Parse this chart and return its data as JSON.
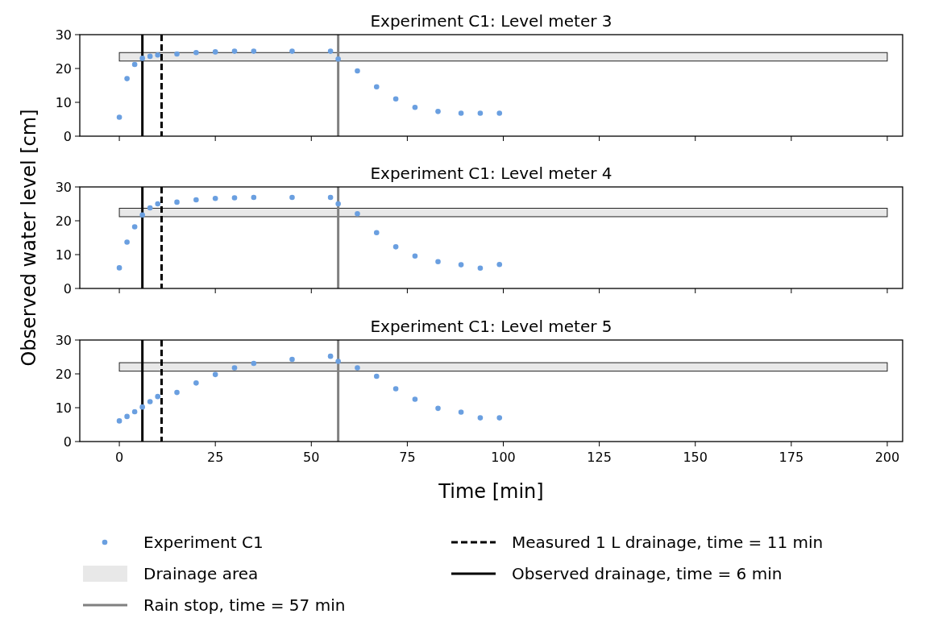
{
  "chart_data": [
    {
      "type": "scatter",
      "title": "Experiment C1: Level meter 3",
      "x": [
        0,
        2,
        4,
        6,
        8,
        10,
        15,
        20,
        25,
        30,
        35,
        45,
        55,
        57,
        62,
        67,
        72,
        77,
        83,
        89,
        94,
        99
      ],
      "series": [
        {
          "color": "#6a9fe0",
          "values": [
            5.6,
            17,
            21.2,
            23,
            23.6,
            24,
            24.3,
            24.7,
            24.9,
            25.1,
            25.1,
            25.1,
            25.1,
            22.8,
            19.3,
            14.6,
            11,
            8.5,
            7.3,
            6.8,
            6.8,
            6.8
          ]
        }
      ],
      "xlim": [
        -10.3,
        204
      ],
      "xticks": [
        0,
        25,
        50,
        75,
        100,
        125,
        150,
        175,
        200
      ],
      "ylim": [
        0,
        30
      ],
      "yticks": [
        0,
        10,
        20,
        30
      ],
      "tick_labels": "y",
      "marker": "circle",
      "grid": false,
      "bands": [
        {
          "axis": "y",
          "from": 22.2,
          "to": 24.7,
          "color": "#e8e8e8"
        }
      ],
      "ref_lines": [
        {
          "axis": "x",
          "value": 57,
          "color": "#808080",
          "line_style": "solid"
        },
        {
          "axis": "x",
          "value": 11,
          "color": "#000000",
          "line_style": "dashed"
        },
        {
          "axis": "x",
          "value": 6,
          "color": "#000000",
          "line_style": "solid"
        }
      ]
    },
    {
      "type": "scatter",
      "title": "Experiment C1: Level meter 4",
      "ylabel": "Observed water level [cm]",
      "x": [
        0,
        2,
        4,
        6,
        8,
        10,
        15,
        20,
        25,
        30,
        35,
        45,
        55,
        57,
        62,
        67,
        72,
        77,
        83,
        89,
        94,
        99
      ],
      "series": [
        {
          "color": "#6a9fe0",
          "values": [
            6.1,
            13.7,
            18.2,
            21.7,
            23.8,
            25,
            25.5,
            26.2,
            26.6,
            26.8,
            26.9,
            26.9,
            26.9,
            25,
            22.1,
            16.5,
            12.3,
            9.6,
            7.9,
            7,
            6,
            7.1
          ]
        }
      ],
      "xlim": [
        -10.3,
        204
      ],
      "xticks": [
        0,
        25,
        50,
        75,
        100,
        125,
        150,
        175,
        200
      ],
      "ylim": [
        0,
        30
      ],
      "yticks": [
        0,
        10,
        20,
        30
      ],
      "tick_labels": "y",
      "marker": "circle",
      "grid": false,
      "bands": [
        {
          "axis": "y",
          "from": 21.2,
          "to": 23.7,
          "color": "#e8e8e8"
        }
      ],
      "ref_lines": [
        {
          "axis": "x",
          "value": 57,
          "color": "#808080",
          "line_style": "solid"
        },
        {
          "axis": "x",
          "value": 11,
          "color": "#000000",
          "line_style": "dashed"
        },
        {
          "axis": "x",
          "value": 6,
          "color": "#000000",
          "line_style": "solid"
        }
      ]
    },
    {
      "type": "scatter",
      "title": "Experiment C1: Level meter 5",
      "xlabel": "Time [min]",
      "x": [
        0,
        2,
        4,
        6,
        8,
        10,
        15,
        20,
        25,
        30,
        35,
        45,
        55,
        57,
        62,
        67,
        72,
        77,
        83,
        89,
        94,
        99
      ],
      "series": [
        {
          "name": "Experiment C1",
          "color": "#6a9fe0",
          "values": [
            6.1,
            7.4,
            8.8,
            10.2,
            11.8,
            13.3,
            14.5,
            17.3,
            19.8,
            21.8,
            23.1,
            24.3,
            25.2,
            23.7,
            21.8,
            19.3,
            15.6,
            12.5,
            9.8,
            8.7,
            7,
            7
          ]
        }
      ],
      "xlim": [
        -10.3,
        204
      ],
      "xticks": [
        0,
        25,
        50,
        75,
        100,
        125,
        150,
        175,
        200
      ],
      "ylim": [
        0,
        30
      ],
      "yticks": [
        0,
        10,
        20,
        30
      ],
      "marker": "circle",
      "grid": false,
      "legend": "bottom",
      "bands": [
        {
          "axis": "y",
          "from": 20.8,
          "to": 23.3,
          "color": "#e8e8e8",
          "label": "Drainage area"
        }
      ],
      "ref_lines": [
        {
          "axis": "x",
          "value": 57,
          "color": "#808080",
          "line_style": "solid",
          "label": "Rain stop, time = 57 min"
        },
        {
          "axis": "x",
          "value": 11,
          "color": "#000000",
          "line_style": "dashed",
          "label": "Measured 1 L drainage, time = 11 min"
        },
        {
          "axis": "x",
          "value": 6,
          "color": "#000000",
          "line_style": "solid",
          "label": "Observed drainage, time = 6 min"
        }
      ]
    }
  ]
}
